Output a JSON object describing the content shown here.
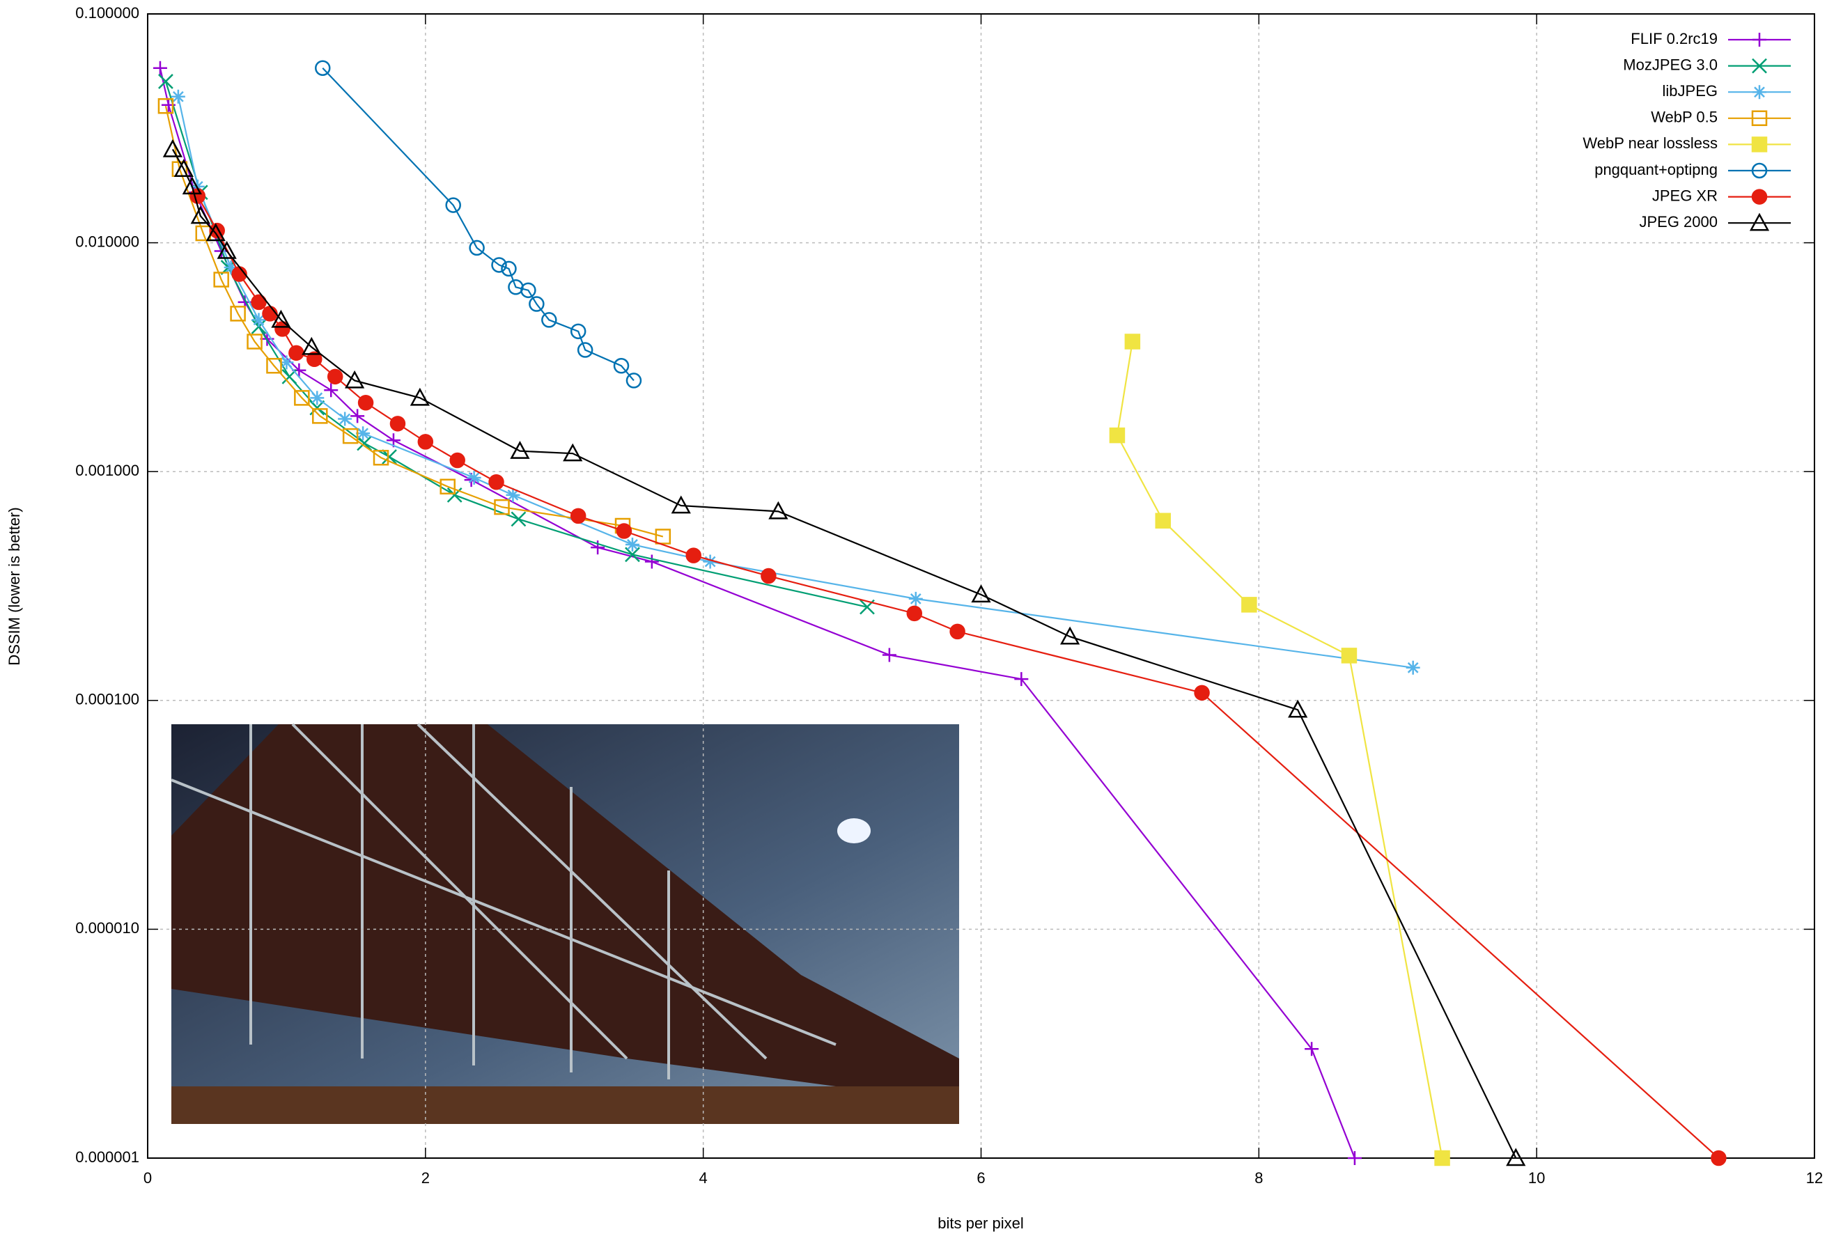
{
  "chart_data": {
    "type": "line",
    "x_label": "bits per pixel",
    "y_label": "DSSIM (lower is better)",
    "xlim": [
      0,
      12
    ],
    "xticks": [
      0,
      2,
      4,
      6,
      8,
      10,
      12
    ],
    "ylim": [
      1e-06,
      0.1
    ],
    "y_log": true,
    "yticks": [
      {
        "value": 1e-06,
        "label": "0.000001"
      },
      {
        "value": 1e-05,
        "label": "0.000010"
      },
      {
        "value": 0.0001,
        "label": "0.000100"
      },
      {
        "value": 0.001,
        "label": "0.001000"
      },
      {
        "value": 0.01,
        "label": "0.010000"
      },
      {
        "value": 0.1,
        "label": "0.100000"
      }
    ],
    "grid": true,
    "legend": "upper right",
    "series": [
      {
        "name": "FLIF 0.2rc19",
        "color": "#9400d3",
        "marker": "plus",
        "x": [
          0.09,
          0.15,
          0.34,
          0.53,
          0.7,
          0.86,
          1.09,
          1.32,
          1.51,
          1.77,
          2.33,
          3.24,
          3.63,
          5.34,
          6.29,
          8.38,
          8.69
        ],
        "values": [
          0.058,
          0.04,
          0.0166,
          0.0092,
          0.0055,
          0.0038,
          0.00277,
          0.00227,
          0.00175,
          0.00137,
          0.00092,
          0.000466,
          0.000404,
          0.000158,
          0.000124,
          3e-06,
          1e-06
        ]
      },
      {
        "name": "MozJPEG 3.0",
        "color": "#009e73",
        "marker": "x",
        "x": [
          0.13,
          0.38,
          0.58,
          0.8,
          1.02,
          1.22,
          1.56,
          1.74,
          2.21,
          2.67,
          3.49,
          5.18
        ],
        "values": [
          0.0507,
          0.0166,
          0.0078,
          0.0043,
          0.0026,
          0.0019,
          0.00133,
          0.00116,
          0.00079,
          0.00062,
          0.000434,
          0.000256
        ]
      },
      {
        "name": "libJPEG",
        "color": "#56b4e9",
        "marker": "star",
        "x": [
          0.22,
          0.36,
          0.6,
          0.8,
          1.0,
          1.22,
          1.42,
          1.55,
          2.35,
          2.63,
          3.49,
          4.05,
          5.53,
          9.11
        ],
        "values": [
          0.0435,
          0.0176,
          0.0078,
          0.0046,
          0.003,
          0.0021,
          0.0017,
          0.00147,
          0.00094,
          0.00079,
          0.00048,
          0.000404,
          0.000278,
          0.000139
        ]
      },
      {
        "name": "WebP 0.5",
        "color": "#e69f00",
        "marker": "square-open",
        "x": [
          0.13,
          0.23,
          0.4,
          0.53,
          0.65,
          0.77,
          0.91,
          1.11,
          1.24,
          1.46,
          1.68,
          2.16,
          2.55,
          3.42,
          3.71
        ],
        "values": [
          0.0396,
          0.021,
          0.011,
          0.0069,
          0.0049,
          0.0037,
          0.0029,
          0.0021,
          0.00175,
          0.00143,
          0.00115,
          0.00086,
          0.0007,
          0.00058,
          0.00052
        ]
      },
      {
        "name": "WebP near lossless",
        "color": "#f0e442",
        "marker": "square",
        "x": [
          7.09,
          6.98,
          7.31,
          7.93,
          8.65,
          9.32
        ],
        "values": [
          0.0037,
          0.00144,
          0.00061,
          0.000262,
          0.000157,
          1e-06
        ]
      },
      {
        "name": "pngquant+optipng",
        "color": "#0072b2",
        "marker": "circle-open",
        "x": [
          1.26,
          2.2,
          2.37,
          2.53,
          2.6,
          2.65,
          2.74,
          2.8,
          2.89,
          3.1,
          3.15,
          3.41,
          3.5
        ],
        "values": [
          0.058,
          0.0146,
          0.0095,
          0.008,
          0.0077,
          0.0064,
          0.0062,
          0.0054,
          0.0046,
          0.0041,
          0.0034,
          0.0029,
          0.0025
        ]
      },
      {
        "name": "JPEG XR",
        "color": "#e51e10",
        "marker": "circle",
        "x": [
          0.36,
          0.5,
          0.66,
          0.8,
          0.88,
          0.97,
          1.07,
          1.2,
          1.35,
          1.57,
          1.8,
          2.0,
          2.23,
          2.51,
          3.1,
          3.43,
          3.93,
          4.47,
          5.52,
          5.83,
          7.59,
          11.31
        ],
        "values": [
          0.016,
          0.0113,
          0.0073,
          0.0055,
          0.0049,
          0.0042,
          0.0033,
          0.0031,
          0.0026,
          0.002,
          0.00162,
          0.00135,
          0.00112,
          0.0009,
          0.00064,
          0.00055,
          0.00043,
          0.00035,
          0.00024,
          0.0002,
          0.000108,
          1e-06
        ]
      },
      {
        "name": "JPEG 2000",
        "color": "#000000",
        "marker": "triangle-open",
        "x": [
          0.18,
          0.26,
          0.32,
          0.38,
          0.49,
          0.57,
          0.96,
          1.18,
          1.49,
          1.96,
          2.68,
          3.06,
          3.84,
          4.54,
          6.0,
          6.64,
          8.28,
          9.85
        ],
        "values": [
          0.0256,
          0.021,
          0.0176,
          0.0131,
          0.011,
          0.0092,
          0.0046,
          0.0035,
          0.0025,
          0.0021,
          0.00123,
          0.0012,
          0.00071,
          0.00067,
          0.00029,
          0.00019,
          9.1e-05,
          1e-06
        ]
      }
    ]
  }
}
